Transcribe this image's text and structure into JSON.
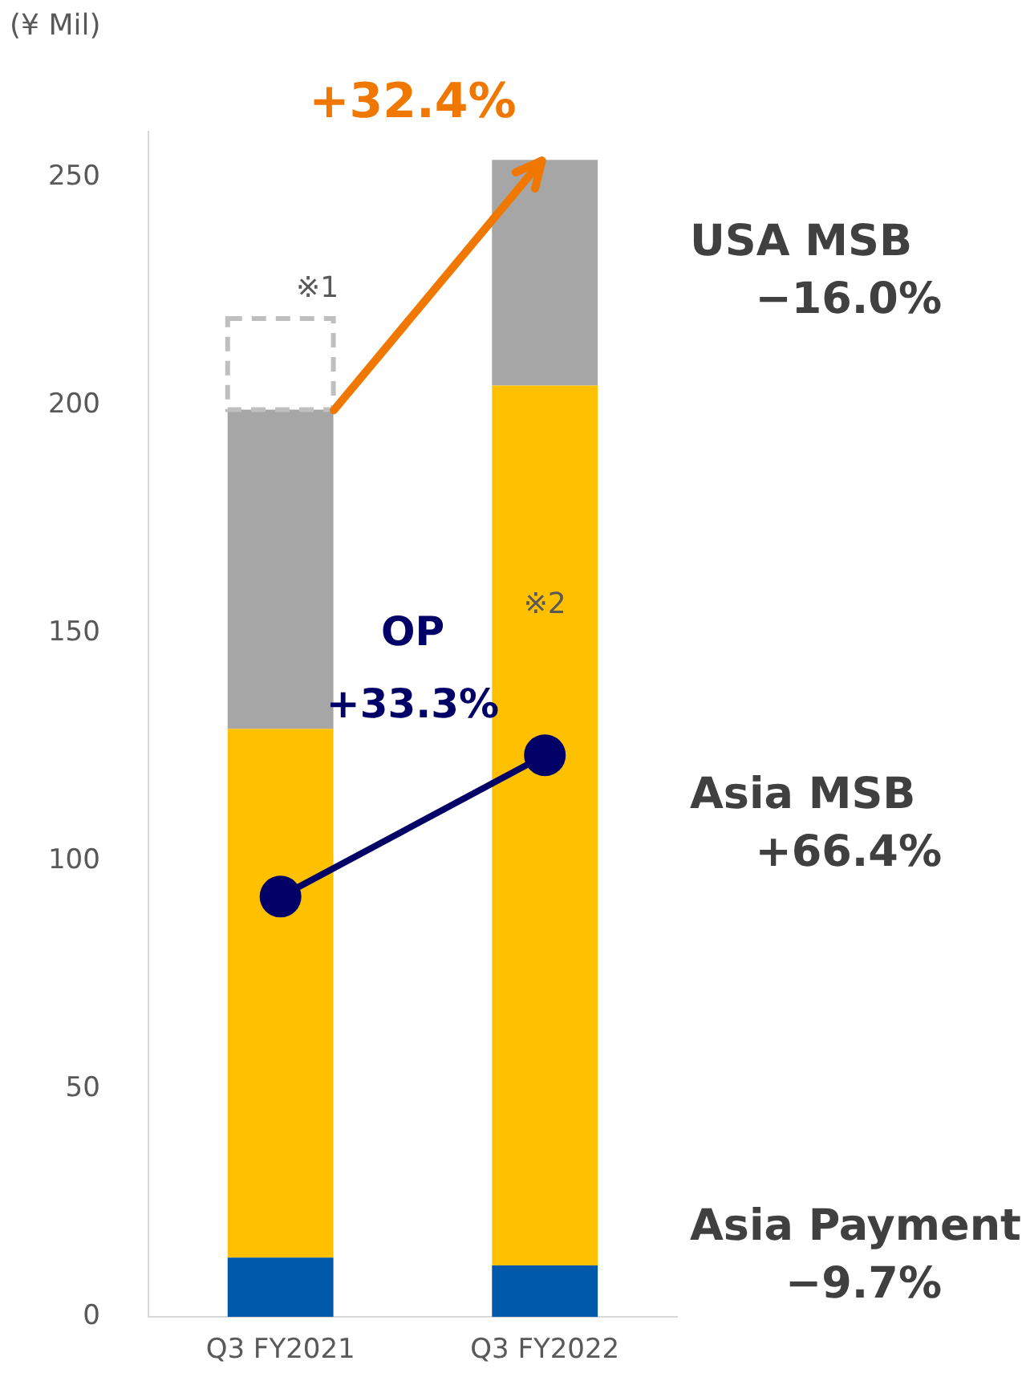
{
  "chart_data": {
    "type": "bar",
    "ylabel": "(¥ Mil)",
    "categories": [
      "Q3 FY2021",
      "Q3 FY2022"
    ],
    "stacked": true,
    "ylim": [
      0,
      260
    ],
    "yticks": [
      0,
      50,
      100,
      150,
      200,
      250
    ],
    "grid": false,
    "legend": false,
    "series": [
      {
        "name": "Asia Payment",
        "color": "#0058a8",
        "values": [
          13,
          11.3
        ]
      },
      {
        "name": "Asia MSB",
        "color": "#ffc000",
        "values": [
          116,
          193
        ]
      },
      {
        "name": "USA MSB",
        "color": "#a6a6a6",
        "values": [
          70,
          49.5
        ]
      },
      {
        "color": "#bfbfbf",
        "values": [
          20,
          null
        ],
        "line_style": "dashed"
      },
      {
        "type": "line",
        "name": "OP",
        "color": "#000066",
        "values": [
          92.2,
          123.2
        ],
        "marker": "circle"
      }
    ],
    "annotations": [
      "−9.7%",
      "+66.4%",
      "−16.0%",
      "+33.3%",
      "+32.4%",
      "※1",
      "※2"
    ]
  }
}
